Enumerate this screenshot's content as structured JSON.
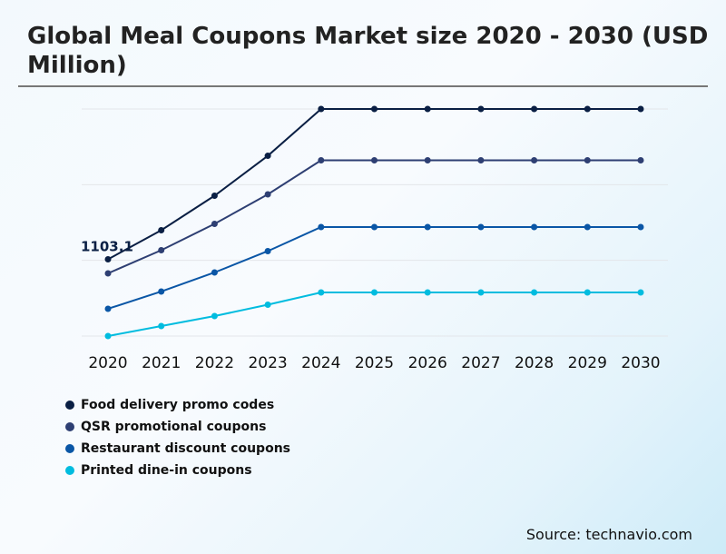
{
  "title": "Global Meal Coupons Market size 2020 - 2030 (USD Million)",
  "source": "Source: technavio.com",
  "chart_data": {
    "type": "line",
    "title": "Global Meal Coupons Market size 2020 - 2030 (USD Million)",
    "categories": [
      "2020",
      "2021",
      "2022",
      "2023",
      "2024",
      "2025",
      "2026",
      "2027",
      "2028",
      "2029",
      "2030"
    ],
    "ylim": [
      0,
      3264
    ],
    "grid": true,
    "legend_position": "bottom-left",
    "series": [
      {
        "name": "Food delivery promo codes",
        "color": "#0a1f44",
        "values": [
          1103.1,
          1521,
          2017,
          2591,
          3264,
          3264,
          3264,
          3264,
          3264,
          3264,
          3264
        ]
      },
      {
        "name": "QSR promotional coupons",
        "color": "#2e3f73",
        "values": [
          901,
          1234,
          1612,
          2037,
          2526,
          2526,
          2526,
          2526,
          2526,
          2526,
          2526
        ]
      },
      {
        "name": "Restaurant discount coupons",
        "color": "#0a56a6",
        "values": [
          392,
          640,
          914,
          1221,
          1567,
          1567,
          1567,
          1567,
          1567,
          1567,
          1567
        ]
      },
      {
        "name": "Printed dine-in coupons",
        "color": "#00bcdf",
        "values": [
          0,
          144,
          287,
          450,
          627,
          627,
          627,
          627,
          627,
          627,
          627
        ]
      }
    ],
    "data_labels": [
      {
        "series": 0,
        "index": 0,
        "text": "1103.1"
      }
    ]
  }
}
